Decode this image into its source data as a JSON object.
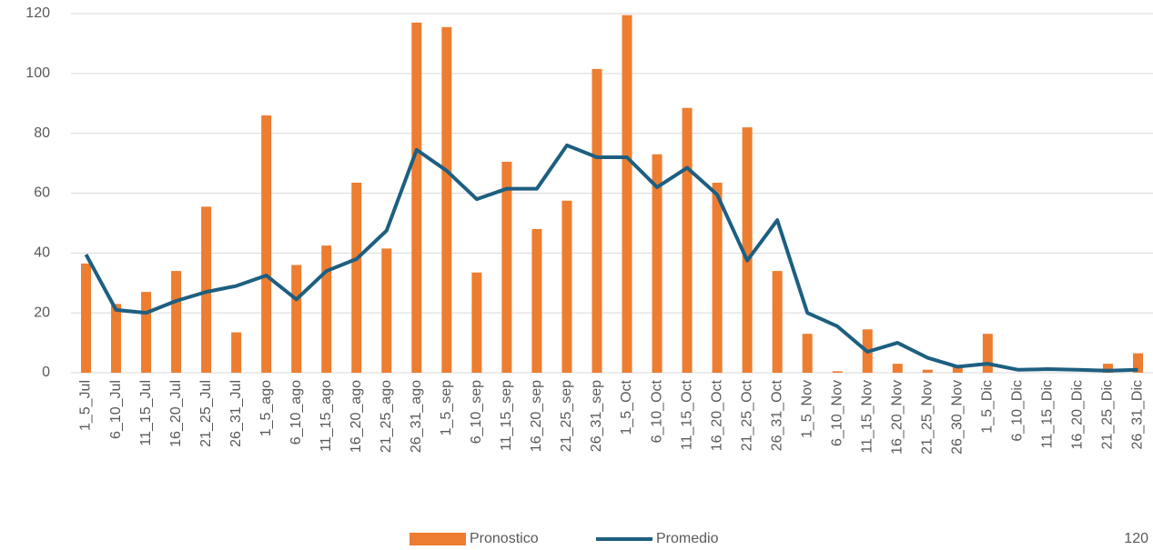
{
  "chart_data": {
    "type": "bar-line",
    "categories": [
      "1_5_Jul",
      "6_10_Jul",
      "11_15_Jul",
      "16_20_Jul",
      "21_25_Jul",
      "26_31_Jul",
      "1_5_ago",
      "6_10_ago",
      "11_15_ago",
      "16_20_ago",
      "21_25_ago",
      "26_31_ago",
      "1_5_sep",
      "6_10_sep",
      "11_15_sep",
      "16_20_sep",
      "21_25_sep",
      "26_31_sep",
      "1_5_Oct",
      "6_10_Oct",
      "11_15_Oct",
      "16_20_Oct",
      "21_25_Oct",
      "26_31_Oct",
      "1_5_Nov",
      "6_10_Nov",
      "11_15_Nov",
      "16_20_Nov",
      "21_25_Nov",
      "26_30_Nov",
      "1_5_Dic",
      "6_10_Dic",
      "11_15_Dic",
      "16_20_Dic",
      "21_25_Dic",
      "26_31_Dic"
    ],
    "series": [
      {
        "name": "Pronostico",
        "type": "bar",
        "color": "#ed7d31",
        "values": [
          36.5,
          23,
          27,
          34,
          55.5,
          13.5,
          86,
          36,
          42.5,
          63.5,
          41.5,
          117,
          115.5,
          33.5,
          70.5,
          48,
          57.5,
          101.5,
          119.5,
          73,
          88.5,
          63.5,
          82,
          34,
          13,
          0.5,
          14.5,
          3,
          1,
          2,
          13,
          0,
          0,
          0,
          3,
          6.5
        ]
      },
      {
        "name": "Promedio",
        "type": "line",
        "color": "#1d5f80",
        "values": [
          39.5,
          21,
          20,
          24,
          27,
          29,
          32.5,
          24.5,
          34,
          38,
          47.5,
          74.5,
          67.5,
          58,
          61.5,
          61.5,
          76,
          72,
          72,
          62,
          68.5,
          59.5,
          37.5,
          51,
          20,
          15.5,
          7,
          10,
          5,
          2,
          3,
          1,
          1.2,
          1,
          0.7,
          1
        ]
      }
    ],
    "ylim": [
      0,
      120
    ],
    "yticks": [
      0,
      20,
      40,
      60,
      80,
      100,
      120
    ],
    "grid": true,
    "annotation": "120"
  }
}
